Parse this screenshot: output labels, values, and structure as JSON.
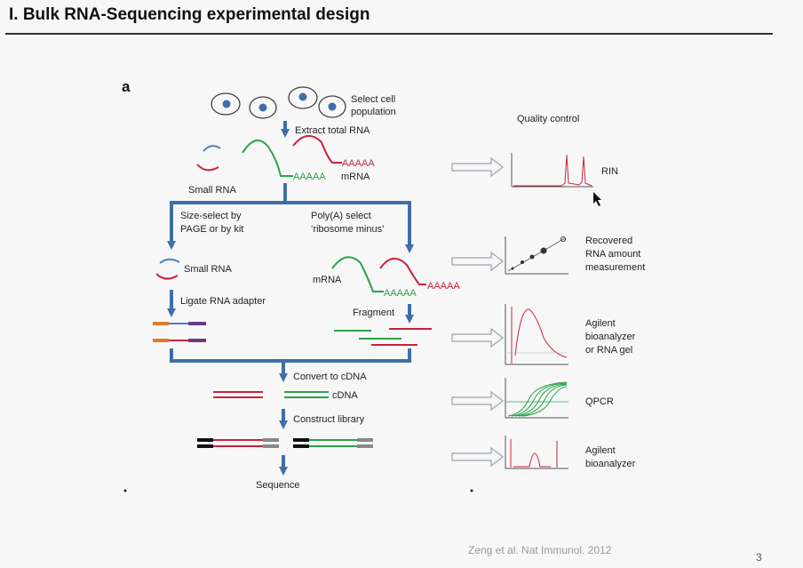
{
  "slide": {
    "title": "I.   Bulk RNA-Sequencing experimental design",
    "citation": "Zeng et al. Nat Immunol. 2012",
    "page_number": "3"
  },
  "figure": {
    "panel_label": "a",
    "workflow": {
      "select_cell_population": [
        "Select cell",
        "population"
      ],
      "extract_total_rna": "Extract total RNA",
      "polya_tail": "AAAAA",
      "mrna": "mRNA",
      "small_rna": "Small RNA",
      "size_select": [
        "Size-select by",
        "PAGE or by kit"
      ],
      "polya_select": [
        "Poly(A) select",
        "‘ribosome minus’"
      ],
      "ligate_adapter": "Ligate RNA adapter",
      "fragment": "Fragment",
      "convert_cdna": "Convert to cDNA",
      "cdna": "cDNA",
      "construct_library": "Construct library",
      "sequence": "Sequence"
    },
    "quality_control": {
      "header": "Quality control",
      "rin": "RIN",
      "recovered": [
        "Recovered",
        "RNA amount",
        "measurement"
      ],
      "bioanalyzer_gel": [
        "Agilent",
        "bioanalyzer",
        "or RNA gel"
      ],
      "qpcr": "QPCR",
      "bioanalyzer": [
        "Agilent",
        "bioanalyzer"
      ]
    },
    "colors": {
      "arrow": "#3e6fa8",
      "red_rna": "#c8233a",
      "green_rna": "#2aa24a",
      "blue_rna": "#4a7fc1",
      "adapter_orange": "#e07a2c",
      "adapter_purple": "#6b3a8c"
    }
  }
}
